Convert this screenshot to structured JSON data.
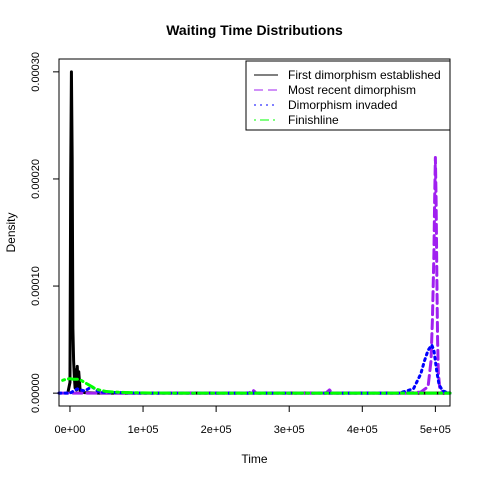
{
  "chart_data": {
    "type": "line",
    "title": "Waiting Time Distributions",
    "xlabel": "Time",
    "ylabel": "Density",
    "xlim": [
      -15000,
      520000
    ],
    "ylim": [
      -1.2e-05,
      0.000312
    ],
    "x_ticks": [
      0,
      100000,
      200000,
      300000,
      400000,
      500000
    ],
    "x_tick_labels": [
      "0e+00",
      "1e+05",
      "2e+05",
      "3e+05",
      "4e+05",
      "5e+05"
    ],
    "y_ticks": [
      0,
      0.0001,
      0.0002,
      0.0003
    ],
    "y_tick_labels": [
      "0.00000",
      "0.00010",
      "0.00020",
      "0.00030"
    ],
    "grid": false,
    "legend_position": "top-right",
    "series": [
      {
        "name": "First dimorphism established",
        "color": "#000000",
        "dash": "solid",
        "x": [
          -3000,
          0,
          1000,
          2000,
          3000,
          4000,
          5000,
          6000,
          7000,
          8000,
          9000,
          10000,
          11000,
          12000,
          14000,
          16000,
          20000,
          30000,
          40000,
          60000,
          100000,
          520000
        ],
        "y": [
          0,
          1e-05,
          0.0002,
          0.0003,
          0.00022,
          6e-05,
          3e-05,
          1.5e-05,
          5e-06,
          2.2e-05,
          3e-06,
          2.5e-05,
          5e-06,
          2e-05,
          2e-06,
          1e-06,
          5e-07,
          2e-07,
          0,
          0,
          0,
          0
        ]
      },
      {
        "name": "Most recent dimorphism",
        "color": "#a020f0",
        "dash": "dashed",
        "x": [
          -15000,
          0,
          20000,
          40000,
          100000,
          200000,
          245000,
          250000,
          255000,
          300000,
          350000,
          355000,
          360000,
          400000,
          460000,
          480000,
          490000,
          494000,
          496000,
          498000,
          499000,
          500000,
          501000,
          502000,
          503000,
          504000,
          506000,
          510000,
          520000
        ],
        "y": [
          0,
          0,
          0,
          0,
          0,
          0,
          0,
          3e-06,
          0,
          0,
          0,
          3e-06,
          0,
          0,
          0,
          1e-06,
          6e-06,
          3e-05,
          7e-05,
          0.00013,
          0.00018,
          0.00022,
          0.00018,
          0.00011,
          5e-05,
          2e-05,
          4e-06,
          1e-06,
          0
        ]
      },
      {
        "name": "Dimorphism invaded",
        "color": "#0000ff",
        "dash": "dotted",
        "x": [
          -15000,
          0,
          10000,
          20000,
          30000,
          40000,
          100000,
          200000,
          300000,
          400000,
          450000,
          460000,
          470000,
          480000,
          485000,
          490000,
          495000,
          498000,
          500000,
          502000,
          505000,
          510000,
          520000
        ],
        "y": [
          0,
          0,
          4e-06,
          2e-06,
          6e-06,
          1e-06,
          0,
          0,
          0,
          0,
          0,
          2e-06,
          4e-06,
          1.8e-05,
          3e-05,
          4e-05,
          4.5e-05,
          4e-05,
          3e-05,
          2e-05,
          8e-06,
          2e-06,
          0
        ]
      },
      {
        "name": "Finishline",
        "color": "#00ff00",
        "dash": "dotdash",
        "x": [
          -10000,
          -5000,
          0,
          5000,
          10000,
          15000,
          20000,
          25000,
          30000,
          35000,
          40000,
          50000,
          60000,
          80000,
          100000,
          150000,
          250000,
          350000,
          450000,
          500000,
          520000
        ],
        "y": [
          1.2e-05,
          1.3e-05,
          1.35e-05,
          1.3e-05,
          1.3e-05,
          1.2e-05,
          1e-05,
          8e-06,
          6e-06,
          4e-06,
          3e-06,
          1.5e-06,
          1e-06,
          5e-07,
          2e-07,
          0,
          0,
          0,
          0,
          0,
          0
        ]
      }
    ]
  }
}
